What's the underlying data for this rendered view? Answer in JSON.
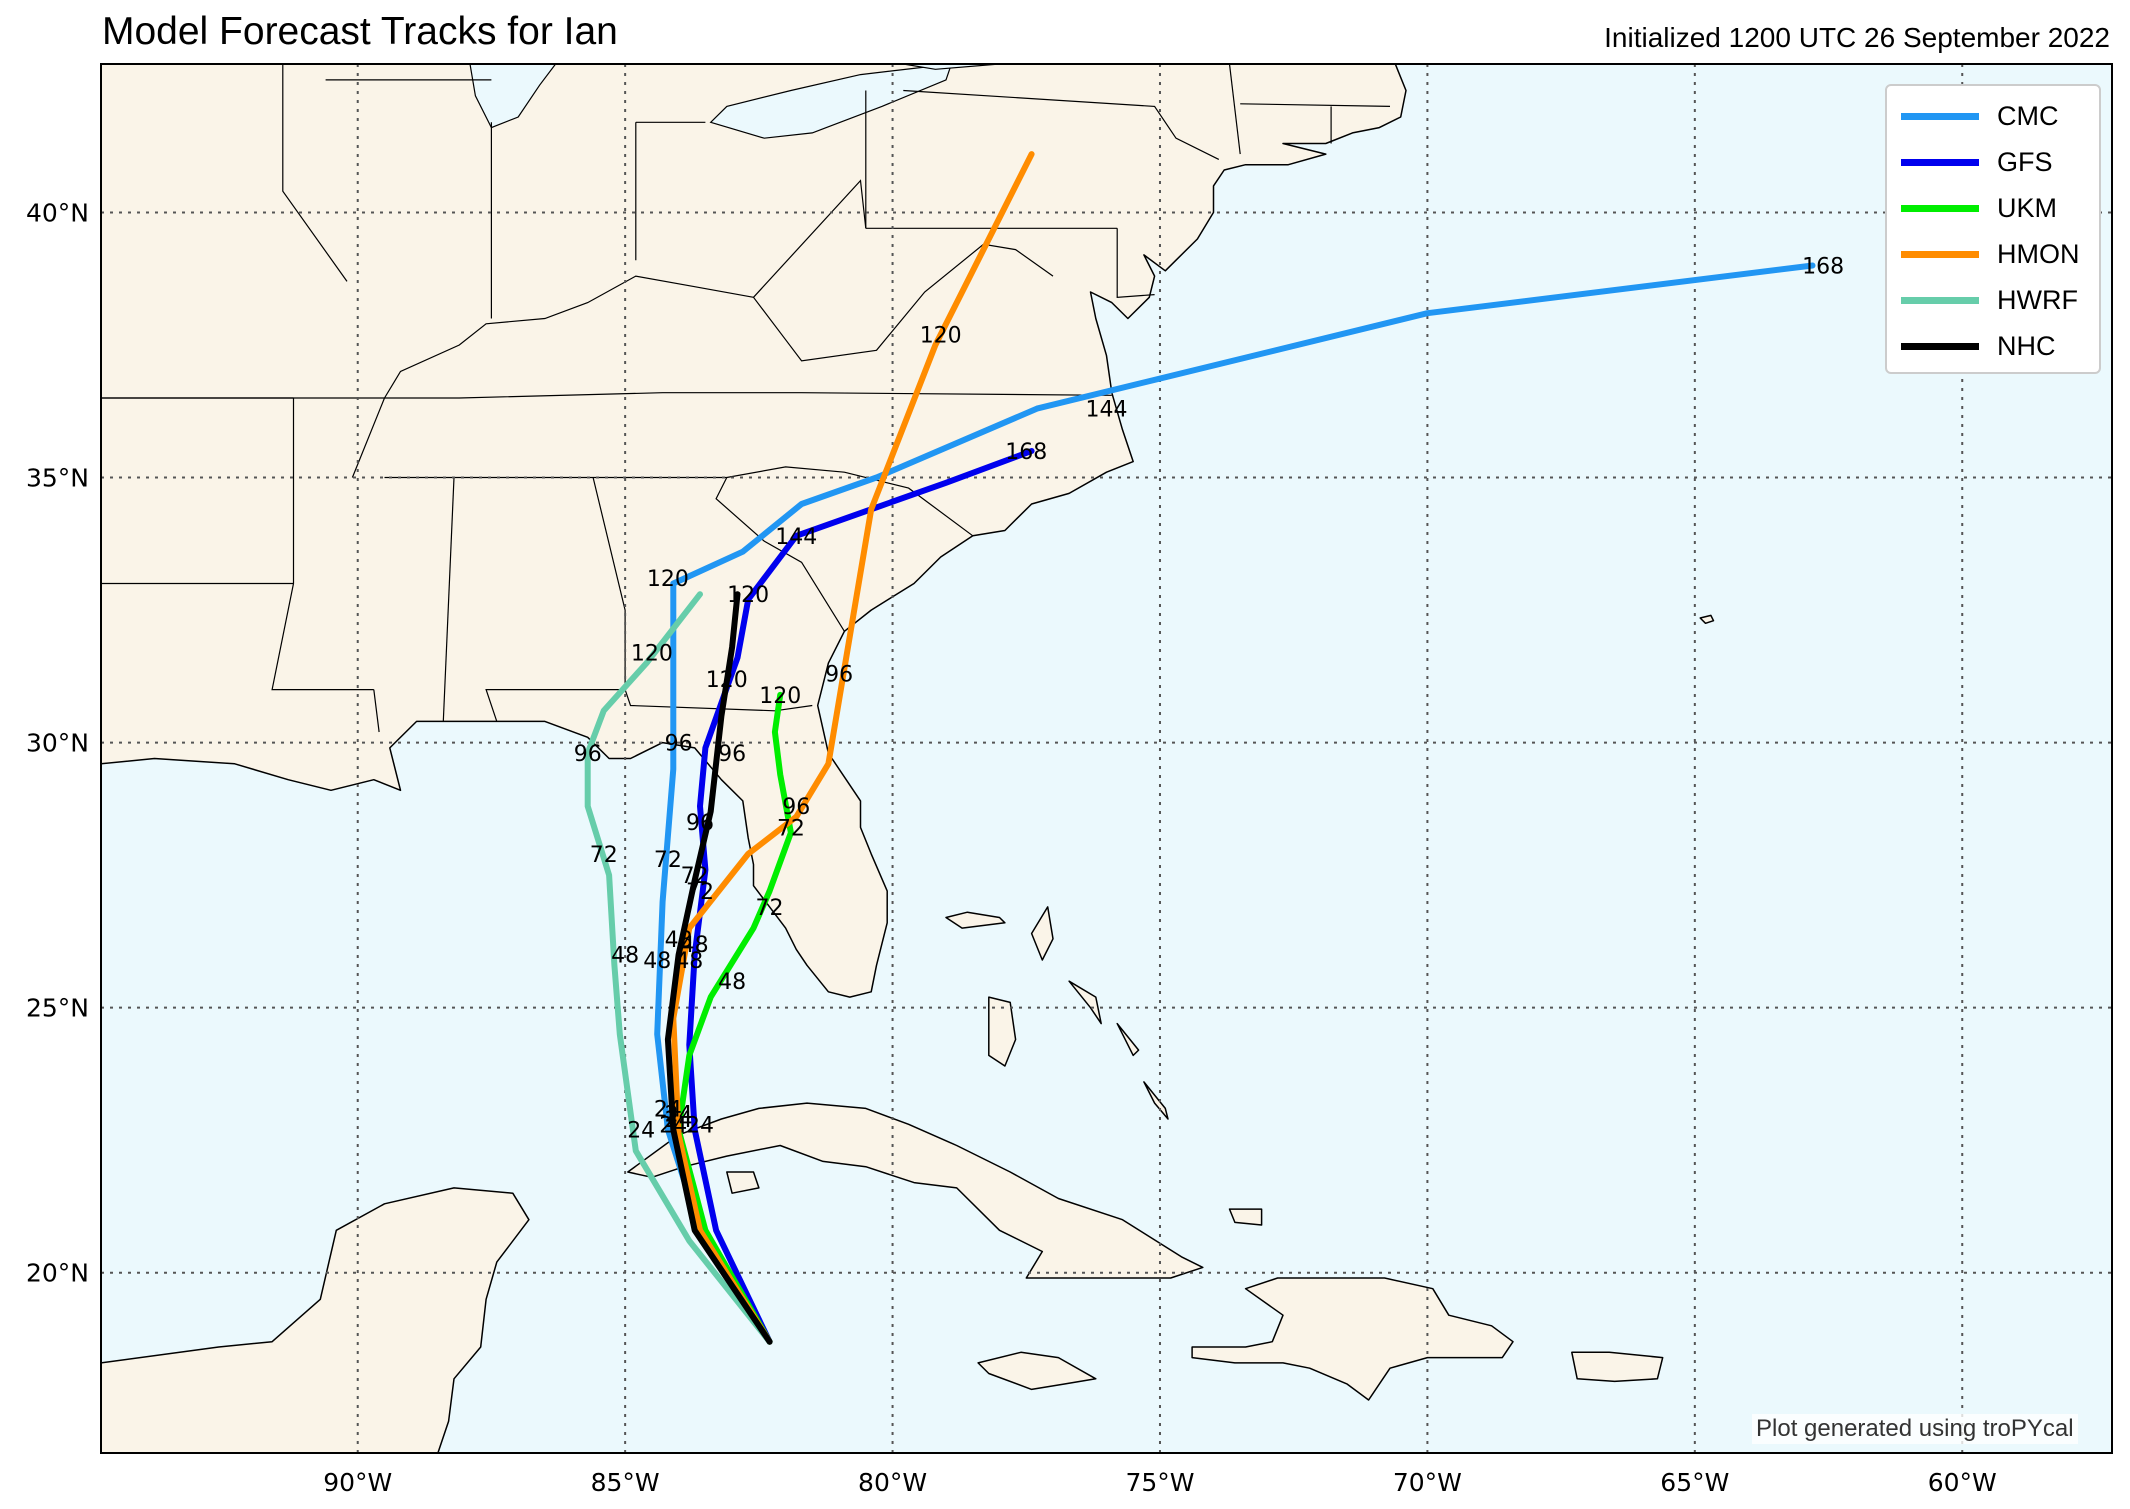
{
  "title": "Model Forecast Tracks for Ian",
  "subtitle": "Initialized 1200 UTC 26 September 2022",
  "credit": "Plot generated using troPYcal",
  "map": {
    "lon_range": [
      -94.8,
      -57.2
    ],
    "lat_range": [
      16.6,
      42.8
    ],
    "land_color": "#faf4e8",
    "ocean_color": "#ebf9fd",
    "lat_ticks": [
      {
        "value": 40,
        "label": "40°N"
      },
      {
        "value": 35,
        "label": "35°N"
      },
      {
        "value": 30,
        "label": "30°N"
      },
      {
        "value": 25,
        "label": "25°N"
      },
      {
        "value": 20,
        "label": "20°N"
      }
    ],
    "lon_ticks": [
      {
        "value": -90,
        "label": "90°W"
      },
      {
        "value": -85,
        "label": "85°W"
      },
      {
        "value": -80,
        "label": "80°W"
      },
      {
        "value": -75,
        "label": "75°W"
      },
      {
        "value": -70,
        "label": "70°W"
      },
      {
        "value": -65,
        "label": "65°W"
      },
      {
        "value": -60,
        "label": "60°W"
      }
    ]
  },
  "legend": {
    "items": [
      {
        "name": "CMC",
        "color": "#2196f3"
      },
      {
        "name": "GFS",
        "color": "#0000ee"
      },
      {
        "name": "UKM",
        "color": "#00ee00"
      },
      {
        "name": "HMON",
        "color": "#ff8c00"
      },
      {
        "name": "HWRF",
        "color": "#66cdaa"
      },
      {
        "name": "NHC",
        "color": "#000000"
      }
    ]
  },
  "tracks": [
    {
      "name": "CMC",
      "color": "#2196f3",
      "points": [
        [
          -82.3,
          18.7
        ],
        [
          -83.6,
          20.8
        ],
        [
          -84.2,
          22.7
        ],
        [
          -84.4,
          24.5
        ],
        [
          -84.3,
          27.0
        ],
        [
          -84.1,
          29.5
        ],
        [
          -84.1,
          31.5
        ],
        [
          -84.1,
          33.0
        ],
        [
          -82.8,
          33.6
        ],
        [
          -81.7,
          34.5
        ],
        [
          -80.3,
          35.0
        ],
        [
          -77.3,
          36.3
        ],
        [
          -70.0,
          38.1
        ],
        [
          -62.8,
          39.0
        ]
      ],
      "labels": [
        {
          "text": "24",
          "lon": -84.2,
          "lat": 23.1
        },
        {
          "text": "48",
          "lon": -84.4,
          "lat": 25.9
        },
        {
          "text": "72",
          "lon": -84.2,
          "lat": 27.8
        },
        {
          "text": "96",
          "lon": -84.0,
          "lat": 30.0
        },
        {
          "text": "120",
          "lon": -84.2,
          "lat": 33.1
        },
        {
          "text": "144",
          "lon": -76.0,
          "lat": 36.3
        },
        {
          "text": "168",
          "lon": -62.6,
          "lat": 39.0
        }
      ]
    },
    {
      "name": "GFS",
      "color": "#0000ee",
      "points": [
        [
          -82.3,
          18.7
        ],
        [
          -83.3,
          20.8
        ],
        [
          -83.7,
          22.7
        ],
        [
          -83.8,
          24.3
        ],
        [
          -83.7,
          26.0
        ],
        [
          -83.5,
          27.6
        ],
        [
          -83.6,
          28.8
        ],
        [
          -83.5,
          29.9
        ],
        [
          -82.9,
          31.6
        ],
        [
          -82.7,
          32.7
        ],
        [
          -81.8,
          33.9
        ],
        [
          -79.0,
          34.9
        ],
        [
          -77.4,
          35.5
        ]
      ],
      "labels": [
        {
          "text": "24",
          "lon": -83.6,
          "lat": 22.8
        },
        {
          "text": "48",
          "lon": -83.8,
          "lat": 25.9
        },
        {
          "text": "72",
          "lon": -83.6,
          "lat": 27.2
        },
        {
          "text": "96",
          "lon": -83.6,
          "lat": 28.5
        },
        {
          "text": "120",
          "lon": -83.1,
          "lat": 31.2
        },
        {
          "text": "144",
          "lon": -81.8,
          "lat": 33.9
        },
        {
          "text": "168",
          "lon": -77.5,
          "lat": 35.5
        }
      ]
    },
    {
      "name": "UKM",
      "color": "#00ee00",
      "points": [
        [
          -82.3,
          18.7
        ],
        [
          -83.5,
          20.8
        ],
        [
          -84.0,
          22.7
        ],
        [
          -83.8,
          24.1
        ],
        [
          -83.4,
          25.2
        ],
        [
          -82.6,
          26.5
        ],
        [
          -82.3,
          27.2
        ],
        [
          -81.9,
          28.3
        ],
        [
          -82.1,
          29.4
        ],
        [
          -82.2,
          30.2
        ],
        [
          -82.1,
          30.9
        ]
      ],
      "labels": [
        {
          "text": "24",
          "lon": -84.0,
          "lat": 22.9
        },
        {
          "text": "48",
          "lon": -83.0,
          "lat": 25.5
        },
        {
          "text": "72",
          "lon": -82.3,
          "lat": 26.9
        },
        {
          "text": "96",
          "lon": -81.8,
          "lat": 28.8
        },
        {
          "text": "120",
          "lon": -82.1,
          "lat": 30.9
        }
      ]
    },
    {
      "name": "HMON",
      "color": "#ff8c00",
      "points": [
        [
          -82.3,
          18.7
        ],
        [
          -83.6,
          20.8
        ],
        [
          -84.0,
          22.6
        ],
        [
          -84.1,
          24.8
        ],
        [
          -83.8,
          26.5
        ],
        [
          -82.7,
          27.9
        ],
        [
          -81.8,
          28.6
        ],
        [
          -81.2,
          29.6
        ],
        [
          -80.9,
          31.4
        ],
        [
          -80.4,
          34.4
        ],
        [
          -79.2,
          37.5
        ],
        [
          -77.4,
          41.1
        ]
      ],
      "labels": [
        {
          "text": "24",
          "lon": -84.0,
          "lat": 23.0
        },
        {
          "text": "48",
          "lon": -83.7,
          "lat": 26.2
        },
        {
          "text": "72",
          "lon": -81.9,
          "lat": 28.4
        },
        {
          "text": "96",
          "lon": -81.0,
          "lat": 31.3
        },
        {
          "text": "120",
          "lon": -79.1,
          "lat": 37.7
        }
      ]
    },
    {
      "name": "HWRF",
      "color": "#66cdaa",
      "points": [
        [
          -82.3,
          18.7
        ],
        [
          -83.8,
          20.6
        ],
        [
          -84.8,
          22.3
        ],
        [
          -85.1,
          24.5
        ],
        [
          -85.2,
          25.8
        ],
        [
          -85.3,
          27.5
        ],
        [
          -85.7,
          28.8
        ],
        [
          -85.7,
          29.8
        ],
        [
          -85.4,
          30.6
        ],
        [
          -84.6,
          31.5
        ],
        [
          -83.6,
          32.8
        ]
      ],
      "labels": [
        {
          "text": "24",
          "lon": -84.7,
          "lat": 22.7
        },
        {
          "text": "48",
          "lon": -85.0,
          "lat": 26.0
        },
        {
          "text": "72",
          "lon": -85.4,
          "lat": 27.9
        },
        {
          "text": "96",
          "lon": -85.7,
          "lat": 29.8
        },
        {
          "text": "120",
          "lon": -84.5,
          "lat": 31.7
        }
      ]
    },
    {
      "name": "NHC",
      "color": "#000000",
      "points": [
        [
          -82.3,
          18.7
        ],
        [
          -83.7,
          20.8
        ],
        [
          -84.1,
          22.7
        ],
        [
          -84.2,
          24.4
        ],
        [
          -84.0,
          26.0
        ],
        [
          -83.7,
          27.4
        ],
        [
          -83.4,
          28.7
        ],
        [
          -83.2,
          30.5
        ],
        [
          -83.0,
          31.8
        ],
        [
          -82.9,
          32.8
        ]
      ],
      "labels": [
        {
          "text": "24",
          "lon": -84.1,
          "lat": 22.8
        },
        {
          "text": "48",
          "lon": -84.0,
          "lat": 26.3
        },
        {
          "text": "72",
          "lon": -83.7,
          "lat": 27.5
        },
        {
          "text": "96",
          "lon": -83.0,
          "lat": 29.8
        },
        {
          "text": "120",
          "lon": -82.7,
          "lat": 32.8
        }
      ]
    }
  ]
}
